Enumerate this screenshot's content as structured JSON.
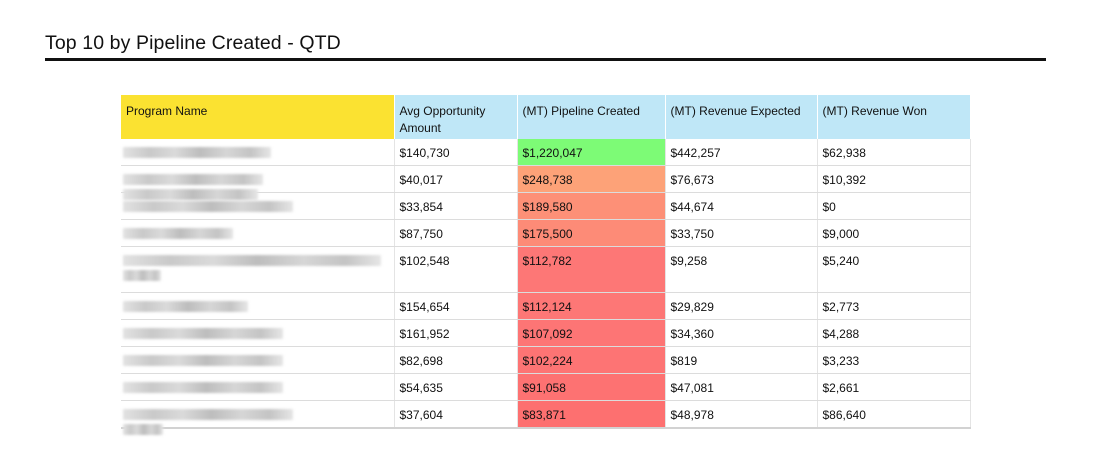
{
  "report": {
    "title": "Top 10 by Pipeline Created - QTD"
  },
  "table": {
    "headers": {
      "program_name": "Program Name",
      "avg_opportunity": "Avg Opportunity Amount",
      "pipeline_created": "(MT) Pipeline Created",
      "revenue_expected": "(MT) Revenue Expected",
      "revenue_won": "(MT) Revenue Won"
    },
    "header_colors": {
      "program_name": "#fbe231",
      "metrics": "#bfe7f7"
    },
    "rows": [
      {
        "program_name": "",
        "avg_opportunity": "$140,730",
        "pipeline_created": "$1,220,047",
        "pipeline_color": "#7dfb76",
        "revenue_expected": "$442,257",
        "revenue_won": "$62,938"
      },
      {
        "program_name": "",
        "avg_opportunity": "$40,017",
        "pipeline_created": "$248,738",
        "pipeline_color": "#fda278",
        "revenue_expected": "$76,673",
        "revenue_won": "$10,392"
      },
      {
        "program_name": "",
        "avg_opportunity": "$33,854",
        "pipeline_created": "$189,580",
        "pipeline_color": "#fd9077",
        "revenue_expected": "$44,674",
        "revenue_won": "$0"
      },
      {
        "program_name": "",
        "avg_opportunity": "$87,750",
        "pipeline_created": "$175,500",
        "pipeline_color": "#fd8b77",
        "revenue_expected": "$33,750",
        "revenue_won": "$9,000"
      },
      {
        "program_name": "",
        "avg_opportunity": "$102,548",
        "pipeline_created": "$112,782",
        "pipeline_color": "#fd7776",
        "revenue_expected": "$9,258",
        "revenue_won": "$5,240"
      },
      {
        "program_name": "",
        "avg_opportunity": "$154,654",
        "pipeline_created": "$112,124",
        "pipeline_color": "#fd7776",
        "revenue_expected": "$29,829",
        "revenue_won": "$2,773"
      },
      {
        "program_name": "",
        "avg_opportunity": "$161,952",
        "pipeline_created": "$107,092",
        "pipeline_color": "#fd7575",
        "revenue_expected": "$34,360",
        "revenue_won": "$4,288"
      },
      {
        "program_name": "",
        "avg_opportunity": "$82,698",
        "pipeline_created": "$102,224",
        "pipeline_color": "#fd7474",
        "revenue_expected": "$819",
        "revenue_won": "$3,233"
      },
      {
        "program_name": "",
        "avg_opportunity": "$54,635",
        "pipeline_created": "$91,058",
        "pipeline_color": "#fd7272",
        "revenue_expected": "$47,081",
        "revenue_won": "$2,661"
      },
      {
        "program_name": "",
        "avg_opportunity": "$37,604",
        "pipeline_created": "$83,871",
        "pipeline_color": "#fd7070",
        "revenue_expected": "$48,978",
        "revenue_won": "$86,640"
      }
    ]
  }
}
